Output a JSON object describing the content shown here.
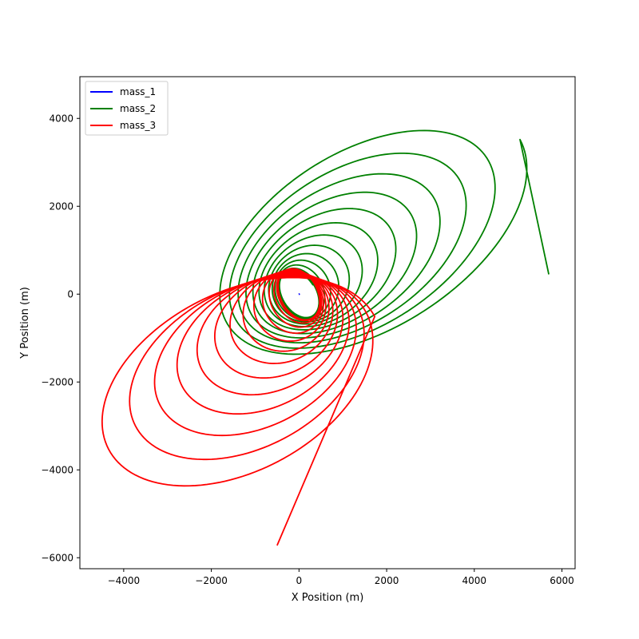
{
  "chart_data": {
    "type": "line",
    "title": "",
    "xlabel": "X Position (m)",
    "ylabel": "Y Position (m)",
    "xlim": [
      -5000,
      6300
    ],
    "ylim": [
      -6250,
      4950
    ],
    "xticks": [
      -4000,
      -2000,
      0,
      2000,
      4000,
      6000
    ],
    "yticks": [
      -6000,
      -4000,
      -2000,
      0,
      2000,
      4000
    ],
    "xtick_labels": [
      "−4000",
      "−2000",
      "0",
      "2000",
      "4000",
      "6000"
    ],
    "ytick_labels": [
      "−6000",
      "−4000",
      "−2000",
      "0",
      "2000",
      "4000"
    ],
    "grid": false,
    "legend_position": "upper-left",
    "series": [
      {
        "name": "mass_1",
        "color": "#0000ff",
        "shape": "dot",
        "center": [
          0,
          0
        ],
        "amplitude": 12
      },
      {
        "name": "mass_2",
        "color": "#008000",
        "shape": "expanding-spiral",
        "direction": 1,
        "turns": 14,
        "inner_radii": [
          380,
          580
        ],
        "outer_radii": [
          4000,
          2200
        ],
        "inner_center": [
          0,
          0
        ],
        "outer_center": [
          1650,
          1400
        ],
        "tilt_deg": 32,
        "end_point": [
          5700,
          450
        ]
      },
      {
        "name": "mass_3",
        "color": "#ff0000",
        "shape": "expanding-spiral",
        "direction": -1,
        "turns": 14,
        "inner_radii": [
          420,
          620
        ],
        "outer_radii": [
          3600,
          2200
        ],
        "inner_center": [
          0,
          0
        ],
        "outer_center": [
          -1450,
          -2200
        ],
        "tilt_deg": 28,
        "end_point": [
          -500,
          -5720
        ]
      }
    ]
  }
}
